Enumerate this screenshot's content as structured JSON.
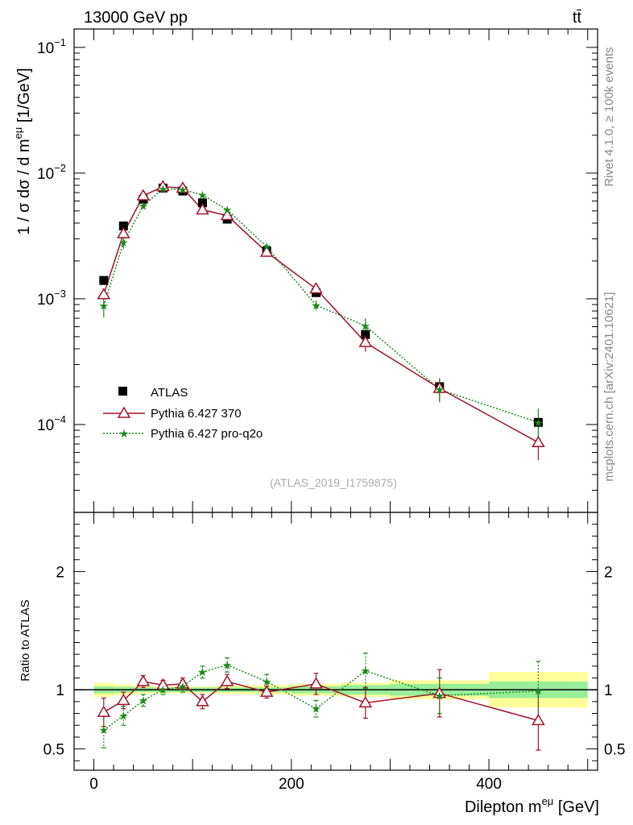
{
  "header": {
    "left": "13000 GeV pp",
    "right": "tt̄"
  },
  "side": {
    "rivet": "Rivet 4.1.0, ≥ 100k events",
    "mcplots": "mcplots.cern.ch [arXiv:2401.10621]"
  },
  "analysis_tag": "(ATLAS_2019_I1759875)",
  "chart_data": [
    {
      "type": "line",
      "title": "",
      "ylabel": "1 / σ dσ / d m^{eμ} [1/GeV]",
      "ylabel_main": "1 / σ  dσ / d m",
      "ylabel_sup": "eμ",
      "ylabel_unit": "[1/GeV]",
      "yscale": "log",
      "ylim": [
        2e-05,
        0.14
      ],
      "xlim": [
        -20,
        510
      ],
      "yticks": [
        0.0001,
        0.001,
        0.01,
        0.1
      ],
      "ytick_base": "10",
      "ytick_exps": [
        "−4",
        "−3",
        "−2",
        "−1"
      ],
      "legend_position": "bottom-left",
      "x": [
        10,
        30,
        50,
        70,
        90,
        110,
        135,
        175,
        225,
        275,
        350,
        450
      ],
      "series": [
        {
          "name": "ATLAS",
          "style": "black squares",
          "color": "#000000",
          "values": [
            0.0014,
            0.0038,
            0.0062,
            0.0076,
            0.0072,
            0.0058,
            0.0043,
            0.0024,
            0.00112,
            0.00052,
            0.0002,
            0.000104
          ]
        },
        {
          "name": "Pythia 6.427 370",
          "style": "solid line, open triangles",
          "color": "#a0122d",
          "values": [
            0.00108,
            0.0033,
            0.0066,
            0.0078,
            0.0076,
            0.0051,
            0.0046,
            0.00235,
            0.0012,
            0.00045,
            0.000194,
            7.2e-05
          ],
          "errors": [
            0.0001,
            0.0002,
            0.0003,
            0.0003,
            0.0003,
            0.0003,
            0.0002,
            0.00012,
            0.00012,
            7e-05,
            4e-05,
            2e-05
          ]
        },
        {
          "name": "Pythia 6.427 pro-q2o",
          "style": "dotted line, stars",
          "color": "#1a8a1a",
          "values": [
            0.00088,
            0.0028,
            0.0055,
            0.0075,
            0.0074,
            0.0067,
            0.0051,
            0.0026,
            0.00089,
            0.00061,
            0.00019,
            0.000104
          ],
          "errors": [
            0.00017,
            0.0003,
            0.0003,
            0.0003,
            0.0003,
            0.0003,
            0.0003,
            0.00015,
            8e-05,
            9e-05,
            4e-05,
            3e-05
          ]
        }
      ]
    },
    {
      "type": "line",
      "title": "",
      "xlabel": "Dilepton m^{eμ} [GeV]",
      "xlabel_main": "Dilepton m",
      "xlabel_sup": "eμ",
      "xlabel_unit": "[GeV]",
      "ylabel": "Ratio to ATLAS",
      "ylim": [
        0.32,
        2.5
      ],
      "xlim": [
        -20,
        510
      ],
      "xticks": [
        0,
        200,
        400
      ],
      "yticks": [
        0.5,
        1,
        2
      ],
      "ytick_labels": [
        "0.5",
        "1",
        "2"
      ],
      "x": [
        10,
        30,
        50,
        70,
        90,
        110,
        135,
        175,
        225,
        275,
        350,
        450
      ],
      "x_bins": [
        [
          0,
          20
        ],
        [
          20,
          40
        ],
        [
          40,
          60
        ],
        [
          60,
          80
        ],
        [
          80,
          100
        ],
        [
          100,
          120
        ],
        [
          120,
          150
        ],
        [
          150,
          200
        ],
        [
          200,
          250
        ],
        [
          250,
          300
        ],
        [
          300,
          400
        ],
        [
          400,
          500
        ]
      ],
      "band_inner": [
        0.03,
        0.025,
        0.02,
        0.02,
        0.02,
        0.02,
        0.02,
        0.02,
        0.03,
        0.04,
        0.05,
        0.07
      ],
      "band_outer": [
        0.06,
        0.045,
        0.035,
        0.03,
        0.03,
        0.03,
        0.035,
        0.04,
        0.05,
        0.06,
        0.08,
        0.15
      ],
      "series": [
        {
          "name": "Pythia 6.427 370",
          "color": "#a0122d",
          "values": [
            0.81,
            0.91,
            1.07,
            1.04,
            1.05,
            0.9,
            1.07,
            0.98,
            1.05,
            0.89,
            0.97,
            0.74
          ],
          "errors": [
            0.12,
            0.07,
            0.05,
            0.04,
            0.05,
            0.06,
            0.06,
            0.05,
            0.09,
            0.13,
            0.2,
            0.25
          ]
        },
        {
          "name": "Pythia 6.427 pro-q2o",
          "color": "#1a8a1a",
          "values": [
            0.66,
            0.78,
            0.91,
            1.0,
            1.03,
            1.15,
            1.21,
            1.07,
            0.84,
            1.16,
            0.95,
            0.99
          ],
          "errors": [
            0.15,
            0.08,
            0.05,
            0.04,
            0.05,
            0.05,
            0.06,
            0.06,
            0.07,
            0.15,
            0.15,
            0.25
          ]
        }
      ]
    }
  ]
}
